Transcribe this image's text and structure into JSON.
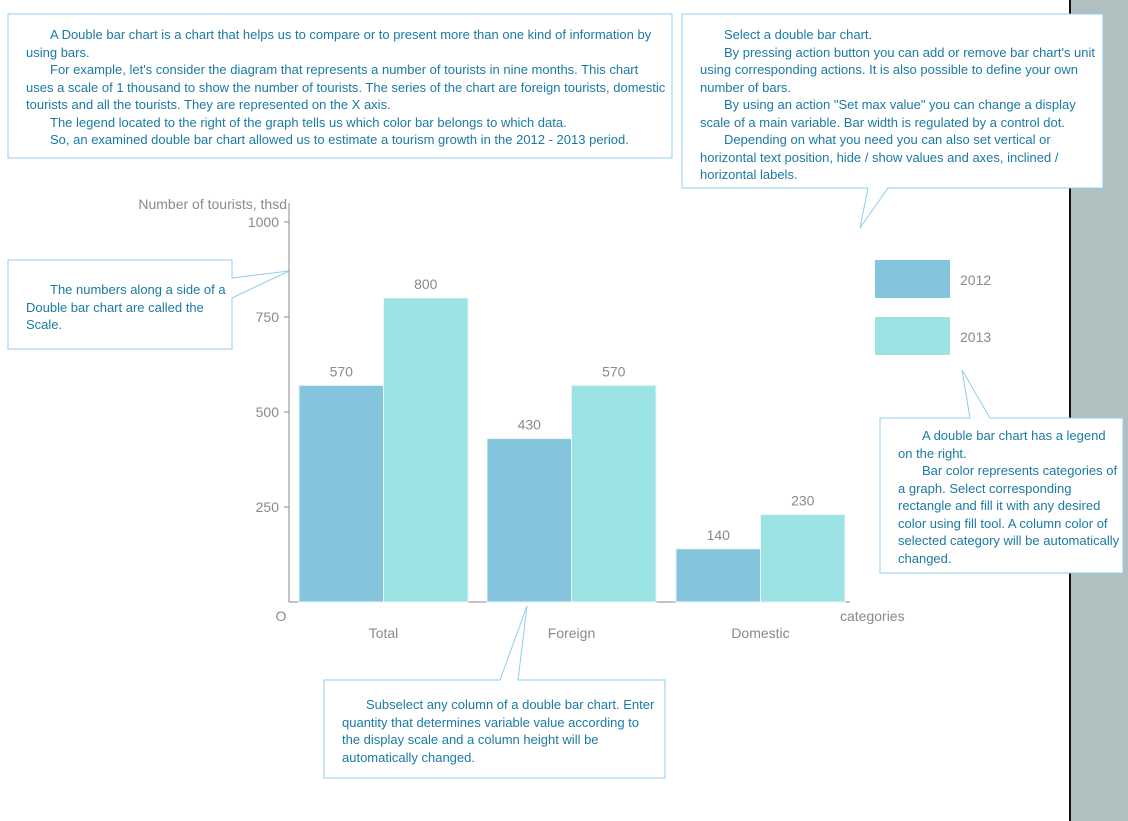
{
  "notes": {
    "intro": [
      "A Double bar chart is a chart that helps us to compare or to present more than one kind of information by using bars.",
      "For example, let's consider the diagram that represents a number of tourists in nine months. This chart uses a scale of 1 thousand to show the number of tourists. The series of the chart are foreign tourists, domestic tourists and all the tourists. They are represented on the X axis.",
      "The legend located to the right of the graph tells us which color bar belongs to which data.",
      "So, an examined double bar chart allowed us to estimate a tourism growth in the 2012 - 2013 period."
    ],
    "actions": [
      "Select a double bar chart.",
      "By pressing action button you can add or remove bar chart's unit using corresponding actions. It is also possible to define your own number of bars.",
      "By using an action \"Set max value\" you can change a display scale of a main variable. Bar width is regulated by a control dot.",
      "Depending on what you need you can also set vertical or horizontal text position, hide / show values and axes, inclined / horizontal labels."
    ],
    "scale": "The numbers along a side of a Double bar chart are called the Scale.",
    "legend": [
      "A double bar chart has a legend on the right.",
      "Bar color represents categories of a graph. Select corresponding rectangle and fill it with any desired color using fill tool. A column color of selected category will be automatically changed."
    ],
    "column": "Subselect any column of a double bar chart. Enter quantity that determines variable value according to the display scale and a column height will be automatically changed."
  },
  "chart_data": {
    "type": "bar",
    "ylabel": "Number of tourists, thsd",
    "xlabel": "categories",
    "ylim": [
      0,
      1000
    ],
    "yticks": [
      "O",
      "250",
      "500",
      "750",
      "1000"
    ],
    "categories": [
      "Total",
      "Foreign",
      "Domestic"
    ],
    "series": [
      {
        "name": "2012",
        "values": [
          570,
          430,
          140
        ],
        "color": "#84c4dc"
      },
      {
        "name": "2013",
        "values": [
          800,
          570,
          230
        ],
        "color": "#9ce4e4"
      }
    ],
    "legend_position": "right",
    "grid": false
  }
}
